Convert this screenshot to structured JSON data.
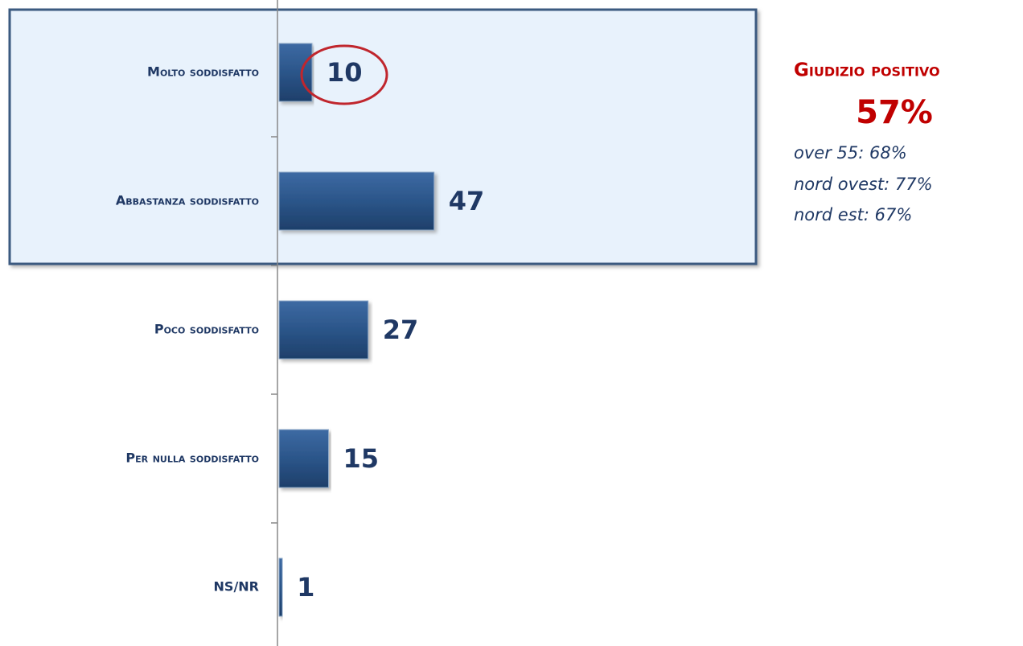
{
  "chart_data": {
    "type": "bar",
    "orientation": "horizontal",
    "categories": [
      "Molto soddisfatto",
      "Abbastanza soddisfatto",
      "Poco soddisfatto",
      "Per nulla soddisfatto",
      "NS/NR"
    ],
    "values": [
      10,
      47,
      27,
      15,
      1
    ],
    "color": "#2b5589",
    "xlim": [
      0,
      100
    ],
    "annotations": {
      "title": "Giudizio positivo",
      "total": "57%",
      "details": [
        "over 55: 68%",
        "nord ovest: 77%",
        "nord est: 67%"
      ]
    }
  }
}
